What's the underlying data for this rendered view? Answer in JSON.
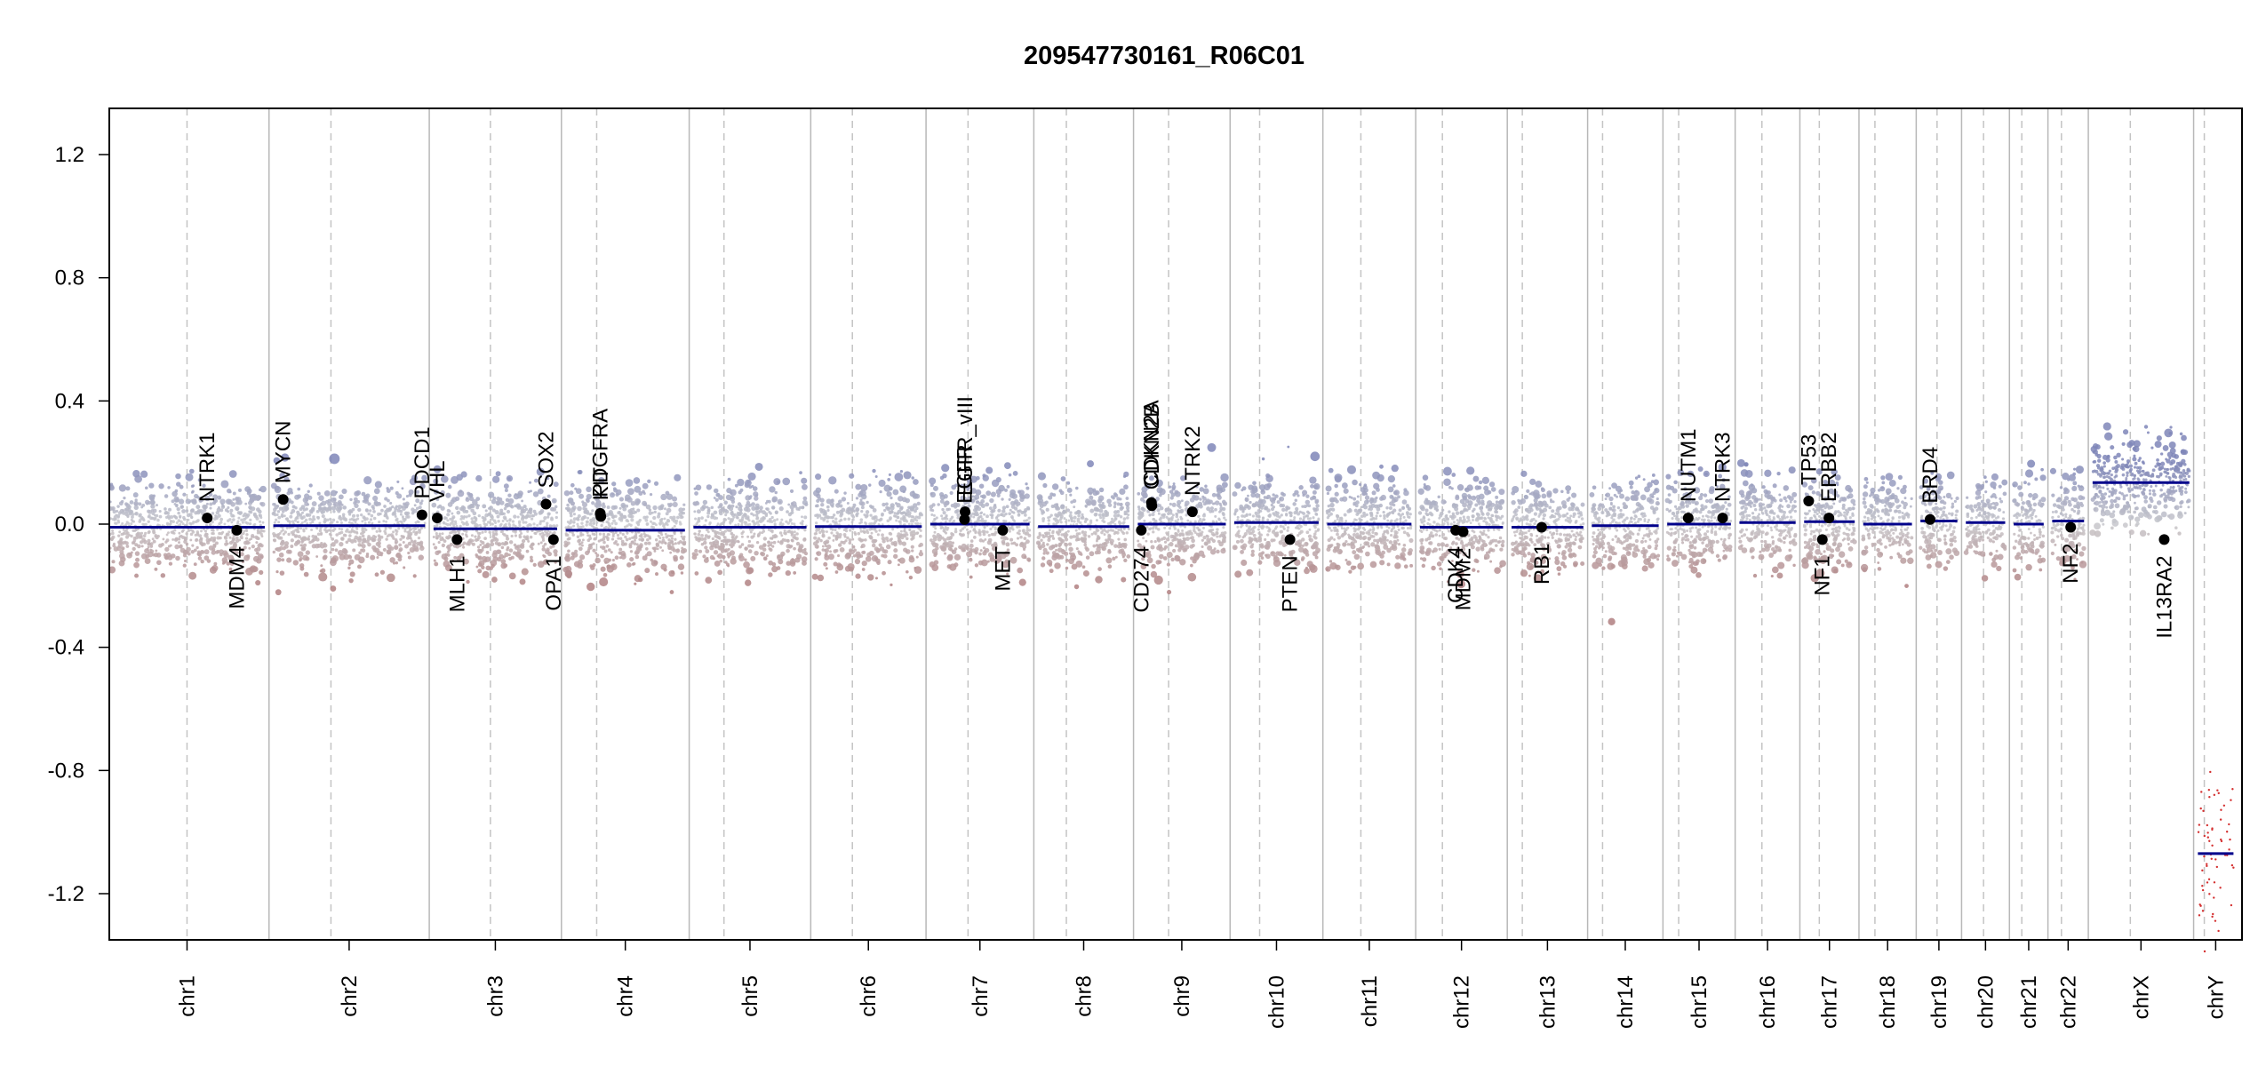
{
  "chart_data": {
    "type": "scatter",
    "title": "209547730161_R06C01",
    "xlabel": "",
    "ylabel": "",
    "ylim": [
      -1.35,
      1.35
    ],
    "y_ticks": [
      -1.2,
      -0.8,
      -0.4,
      0.0,
      0.4,
      0.8,
      1.2
    ],
    "y_tick_labels": [
      "-1.2",
      "-0.8",
      "-0.4",
      "0.0",
      "0.4",
      "0.8",
      "1.2"
    ],
    "grid": false,
    "colors": {
      "gain": "#7f86b8",
      "loss": "#b07f80",
      "neutral": "#c8c8cc",
      "segment": "#00008b",
      "gene_point": "#000000",
      "chrY_loss": "#d43030"
    },
    "chromosomes": [
      {
        "name": "chr1",
        "length": 249,
        "centromere": 0.5,
        "segment": -0.01
      },
      {
        "name": "chr2",
        "length": 243,
        "centromere": 0.38,
        "segment": -0.005
      },
      {
        "name": "chr3",
        "length": 198,
        "centromere": 0.46,
        "segment": -0.015
      },
      {
        "name": "chr4",
        "length": 191,
        "centromere": 0.26,
        "segment": -0.02
      },
      {
        "name": "chr5",
        "length": 181,
        "centromere": 0.27,
        "segment": -0.01
      },
      {
        "name": "chr6",
        "length": 171,
        "centromere": 0.35,
        "segment": -0.008
      },
      {
        "name": "chr7",
        "length": 159,
        "centromere": 0.38,
        "segment": 0.0
      },
      {
        "name": "chr8",
        "length": 146,
        "centromere": 0.31,
        "segment": -0.008
      },
      {
        "name": "chr9",
        "length": 141,
        "centromere": 0.35,
        "segment": 0.0
      },
      {
        "name": "chr10",
        "length": 135,
        "centromere": 0.3,
        "segment": 0.005
      },
      {
        "name": "chr11",
        "length": 135,
        "centromere": 0.4,
        "segment": 0.0
      },
      {
        "name": "chr12",
        "length": 133,
        "centromere": 0.27,
        "segment": -0.01
      },
      {
        "name": "chr13",
        "length": 115,
        "centromere": 0.15,
        "segment": -0.01
      },
      {
        "name": "chr14",
        "length": 107,
        "centromere": 0.16,
        "segment": -0.005
      },
      {
        "name": "chr15",
        "length": 102,
        "centromere": 0.18,
        "segment": 0.0
      },
      {
        "name": "chr16",
        "length": 90,
        "centromere": 0.4,
        "segment": 0.005
      },
      {
        "name": "chr17",
        "length": 81,
        "centromere": 0.3,
        "segment": 0.008
      },
      {
        "name": "chr18",
        "length": 78,
        "centromere": 0.24,
        "segment": 0.0
      },
      {
        "name": "chr19",
        "length": 59,
        "centromere": 0.45,
        "segment": 0.01
      },
      {
        "name": "chr20",
        "length": 63,
        "centromere": 0.45,
        "segment": 0.005
      },
      {
        "name": "chr21",
        "length": 48,
        "centromere": 0.27,
        "segment": 0.0
      },
      {
        "name": "chr22",
        "length": 51,
        "centromere": 0.29,
        "segment": 0.01
      },
      {
        "name": "chrX",
        "length": 155,
        "centromere": 0.39,
        "segment": 0.135
      },
      {
        "name": "chrY",
        "length": 57,
        "centromere": 0.18,
        "segment": -1.07
      }
    ],
    "genes": [
      {
        "name": "NTRK1",
        "chrom": "chr1",
        "pos": 0.63,
        "value": 0.02,
        "label_side": "above"
      },
      {
        "name": "MDM4",
        "chrom": "chr1",
        "pos": 0.82,
        "value": -0.02,
        "label_side": "below"
      },
      {
        "name": "MYCN",
        "chrom": "chr2",
        "pos": 0.065,
        "value": 0.08,
        "label_side": "above"
      },
      {
        "name": "PDCD1",
        "chrom": "chr2",
        "pos": 0.98,
        "value": 0.03,
        "label_side": "above"
      },
      {
        "name": "VHL",
        "chrom": "chr3",
        "pos": 0.03,
        "value": 0.02,
        "label_side": "above"
      },
      {
        "name": "MLH1",
        "chrom": "chr3",
        "pos": 0.19,
        "value": -0.05,
        "label_side": "below"
      },
      {
        "name": "SOX2",
        "chrom": "chr3",
        "pos": 0.91,
        "value": 0.065,
        "label_side": "above"
      },
      {
        "name": "OPA1",
        "chrom": "chr3",
        "pos": 0.97,
        "value": -0.05,
        "label_side": "below"
      },
      {
        "name": "PDGFRA",
        "chrom": "chr4",
        "pos": 0.29,
        "value": 0.035,
        "label_side": "above"
      },
      {
        "name": "KIT",
        "chrom": "chr4",
        "pos": 0.295,
        "value": 0.025,
        "label_side": "above"
      },
      {
        "name": "EGFR_vIII",
        "chrom": "chr7",
        "pos": 0.35,
        "value": 0.04,
        "label_side": "above"
      },
      {
        "name": "EGFR",
        "chrom": "chr7",
        "pos": 0.345,
        "value": 0.015,
        "label_side": "above"
      },
      {
        "name": "MET",
        "chrom": "chr7",
        "pos": 0.73,
        "value": -0.02,
        "label_side": "below"
      },
      {
        "name": "CD274",
        "chrom": "chr9",
        "pos": 0.04,
        "value": -0.02,
        "label_side": "below"
      },
      {
        "name": "CDKN2A",
        "chrom": "chr9",
        "pos": 0.155,
        "value": 0.07,
        "label_side": "above"
      },
      {
        "name": "CDKN2B",
        "chrom": "chr9",
        "pos": 0.16,
        "value": 0.06,
        "label_side": "above"
      },
      {
        "name": "NTRK2",
        "chrom": "chr9",
        "pos": 0.62,
        "value": 0.04,
        "label_side": "above"
      },
      {
        "name": "PTEN",
        "chrom": "chr10",
        "pos": 0.66,
        "value": -0.05,
        "label_side": "below"
      },
      {
        "name": "CDK4",
        "chrom": "chr12",
        "pos": 0.43,
        "value": -0.02,
        "label_side": "below"
      },
      {
        "name": "MDM2",
        "chrom": "chr12",
        "pos": 0.52,
        "value": -0.025,
        "label_side": "below"
      },
      {
        "name": "RB1",
        "chrom": "chr13",
        "pos": 0.42,
        "value": -0.01,
        "label_side": "below"
      },
      {
        "name": "NUTM1",
        "chrom": "chr15",
        "pos": 0.33,
        "value": 0.02,
        "label_side": "above"
      },
      {
        "name": "NTRK3",
        "chrom": "chr15",
        "pos": 0.87,
        "value": 0.02,
        "label_side": "above"
      },
      {
        "name": "TP53",
        "chrom": "chr17",
        "pos": 0.09,
        "value": 0.075,
        "label_side": "above"
      },
      {
        "name": "NF1",
        "chrom": "chr17",
        "pos": 0.36,
        "value": -0.05,
        "label_side": "below"
      },
      {
        "name": "ERBB2",
        "chrom": "chr17",
        "pos": 0.49,
        "value": 0.02,
        "label_side": "above"
      },
      {
        "name": "BRD4",
        "chrom": "chr19",
        "pos": 0.26,
        "value": 0.015,
        "label_side": "above"
      },
      {
        "name": "NF2",
        "chrom": "chr22",
        "pos": 0.58,
        "value": -0.01,
        "label_side": "below"
      },
      {
        "name": "IL13RA2",
        "chrom": "chrX",
        "pos": 0.74,
        "value": -0.05,
        "label_side": "below"
      }
    ]
  }
}
